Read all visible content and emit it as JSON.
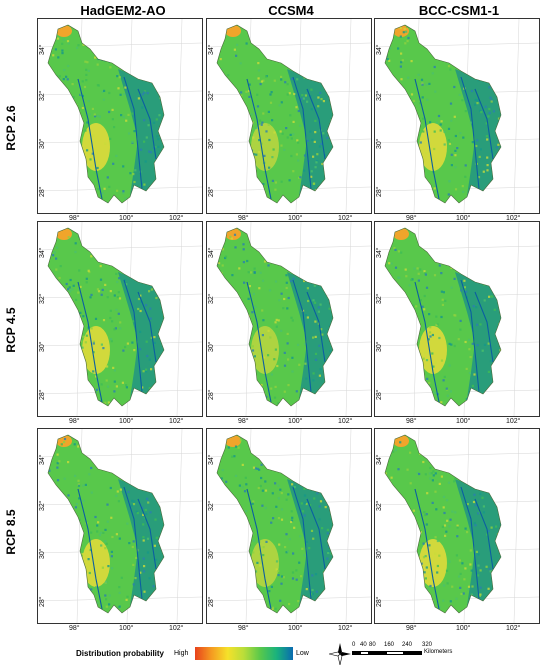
{
  "columns": [
    "HadGEM2-AO",
    "CCSM4",
    "BCC-CSM1-1"
  ],
  "rows": [
    "RCP 2.6",
    "RCP 4.5",
    "RCP 8.5"
  ],
  "lat_labels": [
    "34°",
    "32°",
    "30°",
    "28°"
  ],
  "lon_labels": [
    "98°",
    "100°",
    "102°"
  ],
  "legend": {
    "title": "Distribution probability",
    "high": "High",
    "low": "Low"
  },
  "scale": {
    "ticks": [
      "0",
      "40",
      "80",
      "160",
      "240",
      "320"
    ],
    "unit": "Kilometers"
  },
  "colors": {
    "low": "#0a6bb0",
    "mid": "#58c84b",
    "high": "#e8421c",
    "border": "#333333"
  }
}
